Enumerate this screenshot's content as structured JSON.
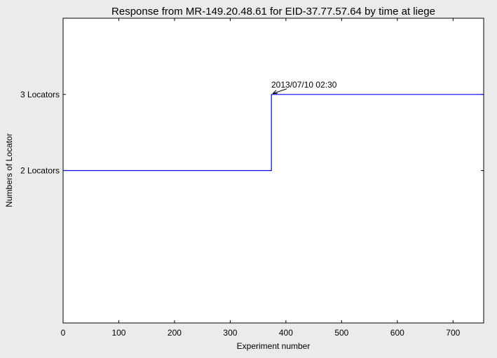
{
  "chart_data": {
    "type": "line",
    "title": "Response from MR-149.20.48.61 for EID-37.77.57.64 by time at liege",
    "xlabel": "Experiment number",
    "ylabel": "Numbers of Locator",
    "xlim": [
      0,
      755
    ],
    "ylim": [
      0,
      4
    ],
    "x_ticks": [
      {
        "value": 0,
        "label": "0"
      },
      {
        "value": 100,
        "label": "100"
      },
      {
        "value": 200,
        "label": "200"
      },
      {
        "value": 300,
        "label": "300"
      },
      {
        "value": 400,
        "label": "400"
      },
      {
        "value": 500,
        "label": "500"
      },
      {
        "value": 600,
        "label": "600"
      },
      {
        "value": 700,
        "label": "700"
      }
    ],
    "y_ticks": [
      {
        "value": 2,
        "label": "2 Locators"
      },
      {
        "value": 3,
        "label": "3 Locators"
      }
    ],
    "series": [
      {
        "color": "#0000ff",
        "points": [
          [
            0,
            2
          ],
          [
            374,
            2
          ],
          [
            374,
            3
          ],
          [
            755,
            3
          ]
        ]
      }
    ],
    "annotations": [
      {
        "text": "2013/07/10 02:30",
        "x": 375,
        "y": 3
      }
    ],
    "grid": false,
    "legend": "none"
  }
}
